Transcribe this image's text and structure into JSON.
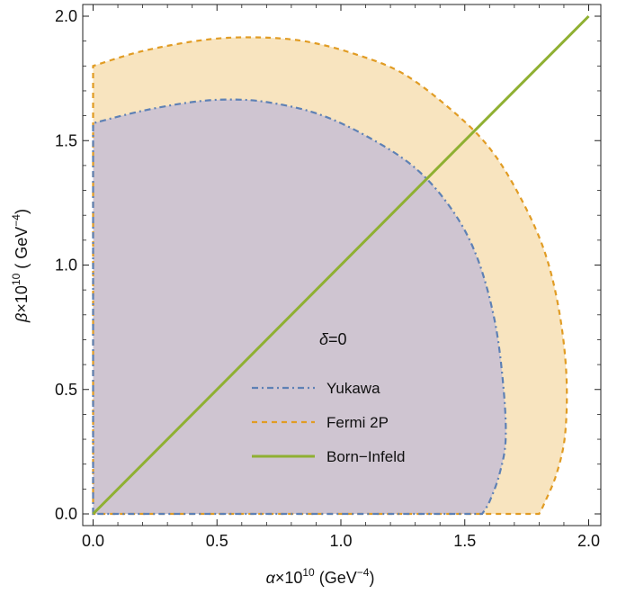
{
  "chart_data": {
    "type": "area",
    "annotation": {
      "symbol": "δ",
      "text": "=0"
    },
    "xlabel": {
      "symbol": "α",
      "mult": "×10",
      "exp": "10",
      "unit": " (GeV",
      "unit_exp": "−4",
      "close": ")"
    },
    "ylabel": {
      "symbol": "β",
      "mult": "×10",
      "exp": "10",
      "unit": " ( GeV",
      "unit_exp": "−4",
      "close": ")"
    },
    "xlim": [
      0.0,
      2.0
    ],
    "ylim": [
      0.0,
      2.0
    ],
    "x_ticks": [
      0.0,
      0.5,
      1.0,
      1.5,
      2.0
    ],
    "y_ticks": [
      0.0,
      0.5,
      1.0,
      1.5,
      2.0
    ],
    "x_tick_labels": [
      "0.0",
      "0.5",
      "1.0",
      "1.5",
      "2.0"
    ],
    "y_tick_labels": [
      "0.0",
      "0.5",
      "1.0",
      "1.5",
      "2.0"
    ],
    "legend_placement": "center",
    "series": [
      {
        "name": "Yukawa",
        "style": "dash-dot",
        "color": "#5e81b5",
        "fill": "#c8c0d4",
        "boundary": [
          [
            0.0,
            0.0
          ],
          [
            0.0,
            1.57
          ],
          [
            0.2,
            1.62
          ],
          [
            0.4,
            1.655
          ],
          [
            0.55,
            1.665
          ],
          [
            0.7,
            1.655
          ],
          [
            0.9,
            1.61
          ],
          [
            1.1,
            1.52
          ],
          [
            1.3,
            1.39
          ],
          [
            1.45,
            1.22
          ],
          [
            1.55,
            1.03
          ],
          [
            1.62,
            0.78
          ],
          [
            1.655,
            0.52
          ],
          [
            1.665,
            0.3
          ],
          [
            1.64,
            0.16
          ],
          [
            1.6,
            0.05
          ],
          [
            1.57,
            0.0
          ]
        ]
      },
      {
        "name": "Fermi 2P",
        "style": "dashed",
        "color": "#e19c24",
        "fill": "#f7dfb4",
        "boundary": [
          [
            0.0,
            0.0
          ],
          [
            0.0,
            1.8
          ],
          [
            0.2,
            1.86
          ],
          [
            0.45,
            1.905
          ],
          [
            0.65,
            1.915
          ],
          [
            0.85,
            1.9
          ],
          [
            1.05,
            1.85
          ],
          [
            1.25,
            1.77
          ],
          [
            1.45,
            1.62
          ],
          [
            1.6,
            1.47
          ],
          [
            1.72,
            1.28
          ],
          [
            1.82,
            1.06
          ],
          [
            1.88,
            0.82
          ],
          [
            1.91,
            0.56
          ],
          [
            1.905,
            0.32
          ],
          [
            1.87,
            0.16
          ],
          [
            1.82,
            0.04
          ],
          [
            1.8,
            0.0
          ]
        ]
      },
      {
        "name": "Born−Infeld",
        "style": "solid",
        "color": "#8fb032",
        "points": [
          [
            0.0,
            0.0
          ],
          [
            2.0,
            2.0
          ]
        ]
      }
    ]
  }
}
